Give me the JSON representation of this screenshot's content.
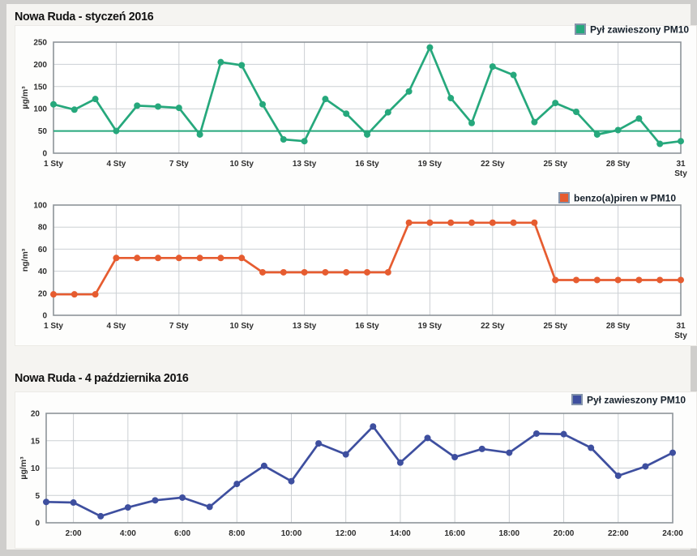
{
  "page": {
    "background": "#cfcecc",
    "content_background": "#f5f4f1",
    "grid_color": "#ccd0d4",
    "plot_border_color": "#8e9499"
  },
  "chart_data": [
    {
      "type": "line",
      "title": "Nowa Ruda - styczeń 2016",
      "legend": "Pył zawieszony PM10",
      "color": "#26a87c",
      "ylabel": "µg/m³",
      "ylim": [
        0,
        250
      ],
      "yticks": [
        0,
        50,
        100,
        150,
        200,
        250
      ],
      "x": [
        1,
        2,
        3,
        4,
        5,
        6,
        7,
        8,
        9,
        10,
        11,
        12,
        13,
        14,
        15,
        16,
        17,
        18,
        19,
        20,
        21,
        22,
        23,
        24,
        25,
        26,
        27,
        28,
        29,
        30,
        31
      ],
      "x_tick_labels": [
        "1 Sty",
        "4 Sty",
        "7 Sty",
        "10 Sty",
        "13 Sty",
        "16 Sty",
        "19 Sty",
        "22 Sty",
        "25 Sty",
        "28 Sty",
        "31 Sty"
      ],
      "values": [
        110,
        98,
        122,
        50,
        107,
        105,
        102,
        42,
        205,
        198,
        110,
        31,
        27,
        122,
        89,
        42,
        92,
        139,
        238,
        124,
        68,
        195,
        176,
        70,
        113,
        93,
        42,
        52,
        78,
        21,
        27
      ],
      "reference_line": 50,
      "grid": true,
      "legend_position": "top-right"
    },
    {
      "type": "line",
      "title": "",
      "legend": "benzo(a)piren w PM10",
      "color": "#e65c30",
      "ylabel": "ng/m³",
      "ylim": [
        0,
        100
      ],
      "yticks": [
        0,
        20,
        40,
        60,
        80,
        100
      ],
      "x": [
        1,
        2,
        3,
        4,
        5,
        6,
        7,
        8,
        9,
        10,
        11,
        12,
        13,
        14,
        15,
        16,
        17,
        18,
        19,
        20,
        21,
        22,
        23,
        24,
        25,
        26,
        27,
        28,
        29,
        30,
        31
      ],
      "x_tick_labels": [
        "1 Sty",
        "4 Sty",
        "7 Sty",
        "10 Sty",
        "13 Sty",
        "16 Sty",
        "19 Sty",
        "22 Sty",
        "25 Sty",
        "28 Sty",
        "31 Sty"
      ],
      "values": [
        19,
        19,
        19,
        52,
        52,
        52,
        52,
        52,
        52,
        52,
        39,
        39,
        39,
        39,
        39,
        39,
        39,
        84,
        84,
        84,
        84,
        84,
        84,
        84,
        32,
        32,
        32,
        32,
        32,
        32,
        32
      ],
      "grid": true,
      "legend_position": "top-right"
    },
    {
      "type": "line",
      "title": "Nowa Ruda - 4 października 2016",
      "legend": "Pył zawieszony PM10",
      "color": "#3e4f9f",
      "ylabel": "µg/m³",
      "ylim": [
        0,
        20
      ],
      "yticks": [
        0,
        5,
        10,
        15,
        20
      ],
      "x": [
        1,
        2,
        3,
        4,
        5,
        6,
        7,
        8,
        9,
        10,
        11,
        12,
        13,
        14,
        15,
        16,
        17,
        18,
        19,
        20,
        21,
        22,
        23,
        24
      ],
      "x_tick_labels": [
        "2:00",
        "4:00",
        "6:00",
        "8:00",
        "10:00",
        "12:00",
        "14:00",
        "16:00",
        "18:00",
        "20:00",
        "22:00",
        "24:00"
      ],
      "values": [
        3.8,
        3.7,
        1.2,
        2.8,
        4.1,
        4.6,
        2.9,
        7.1,
        10.4,
        7.6,
        14.5,
        12.5,
        17.6,
        11.0,
        15.5,
        12.0,
        13.5,
        12.8,
        16.3,
        16.2,
        13.7,
        8.6,
        10.3,
        12.8
      ],
      "grid": true,
      "legend_position": "top-right"
    }
  ]
}
